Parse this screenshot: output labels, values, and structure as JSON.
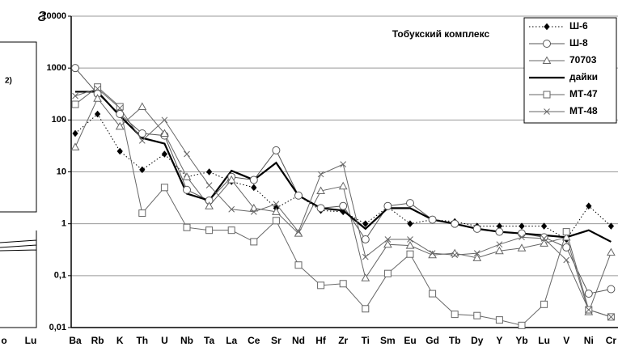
{
  "panel_label": "г",
  "fragment_labels": [
    "2)",
    "o",
    "Lu"
  ],
  "chart_data": {
    "type": "line",
    "annotation": "Тобукский комплекс",
    "log_scale": true,
    "grid": true,
    "legend": "top-right",
    "categories": [
      "Ba",
      "Rb",
      "K",
      "Th",
      "U",
      "Nb",
      "Ta",
      "La",
      "Ce",
      "Sr",
      "Nd",
      "Hf",
      "Zr",
      "Ti",
      "Sm",
      "Eu",
      "Gd",
      "Tb",
      "Dy",
      "Y",
      "Yb",
      "Lu",
      "V",
      "Ni",
      "Cr"
    ],
    "ylim": [
      0.01,
      10000
    ],
    "yticks": [
      {
        "value": 0.01,
        "label": "0,01"
      },
      {
        "value": 0.1,
        "label": "0,1"
      },
      1,
      10,
      100,
      1000,
      10000
    ],
    "series": [
      {
        "name": "Ш-6",
        "color": "#000000",
        "marker": "diamond",
        "dash": "dotted",
        "line_width": 1,
        "values": [
          55,
          130,
          25,
          11,
          22,
          8,
          10,
          6.5,
          5,
          2,
          3.5,
          1.8,
          1.7,
          1.0,
          2.1,
          1.0,
          1.2,
          1.1,
          0.9,
          0.9,
          0.9,
          0.9,
          0.5,
          2.2,
          0.9
        ]
      },
      {
        "name": "Ш-8",
        "color": "#555555",
        "marker": "circle",
        "dash": "solid",
        "line_width": 1,
        "values": [
          1000,
          320,
          130,
          55,
          50,
          4.5,
          2.8,
          8,
          7,
          26,
          3.5,
          2,
          2.2,
          0.5,
          2.2,
          2.5,
          1.2,
          1.0,
          0.8,
          0.7,
          0.65,
          0.55,
          0.35,
          0.045,
          0.055
        ]
      },
      {
        "name": "70703",
        "color": "#666666",
        "marker": "triangle",
        "dash": "solid",
        "line_width": 1,
        "values": [
          30,
          260,
          75,
          180,
          55,
          8,
          2.2,
          7,
          2,
          1.7,
          0.65,
          4.3,
          5.3,
          0.09,
          0.4,
          0.38,
          0.25,
          0.27,
          0.22,
          0.3,
          0.34,
          0.42,
          0.55,
          0.02,
          0.28
        ]
      },
      {
        "name": "дайки",
        "color": "#000000",
        "marker": "none",
        "dash": "solid",
        "line_width": 2.2,
        "values": [
          350,
          350,
          120,
          45,
          35,
          3.8,
          2.8,
          10.5,
          7,
          15,
          3.5,
          2,
          1.8,
          0.8,
          2,
          2,
          1.2,
          1.0,
          0.8,
          0.7,
          0.65,
          0.6,
          0.55,
          0.75,
          0.45
        ]
      },
      {
        "name": "МТ-47",
        "color": "#666666",
        "marker": "square",
        "dash": "solid",
        "line_width": 1,
        "values": [
          200,
          430,
          180,
          1.6,
          5,
          0.85,
          0.75,
          0.75,
          0.45,
          1.15,
          0.16,
          0.065,
          0.07,
          0.023,
          0.11,
          0.26,
          0.045,
          0.018,
          0.017,
          0.014,
          0.011,
          0.028,
          0.7,
          0.022,
          0.016
        ]
      },
      {
        "name": "МТ-48",
        "color": "#666666",
        "marker": "x",
        "dash": "solid",
        "line_width": 1,
        "values": [
          290,
          400,
          170,
          40,
          100,
          22,
          5.5,
          1.9,
          1.7,
          2.4,
          0.7,
          9,
          14,
          0.23,
          0.5,
          0.5,
          0.27,
          0.25,
          0.27,
          0.4,
          0.55,
          0.52,
          0.2,
          0.022,
          0.016
        ]
      }
    ]
  }
}
